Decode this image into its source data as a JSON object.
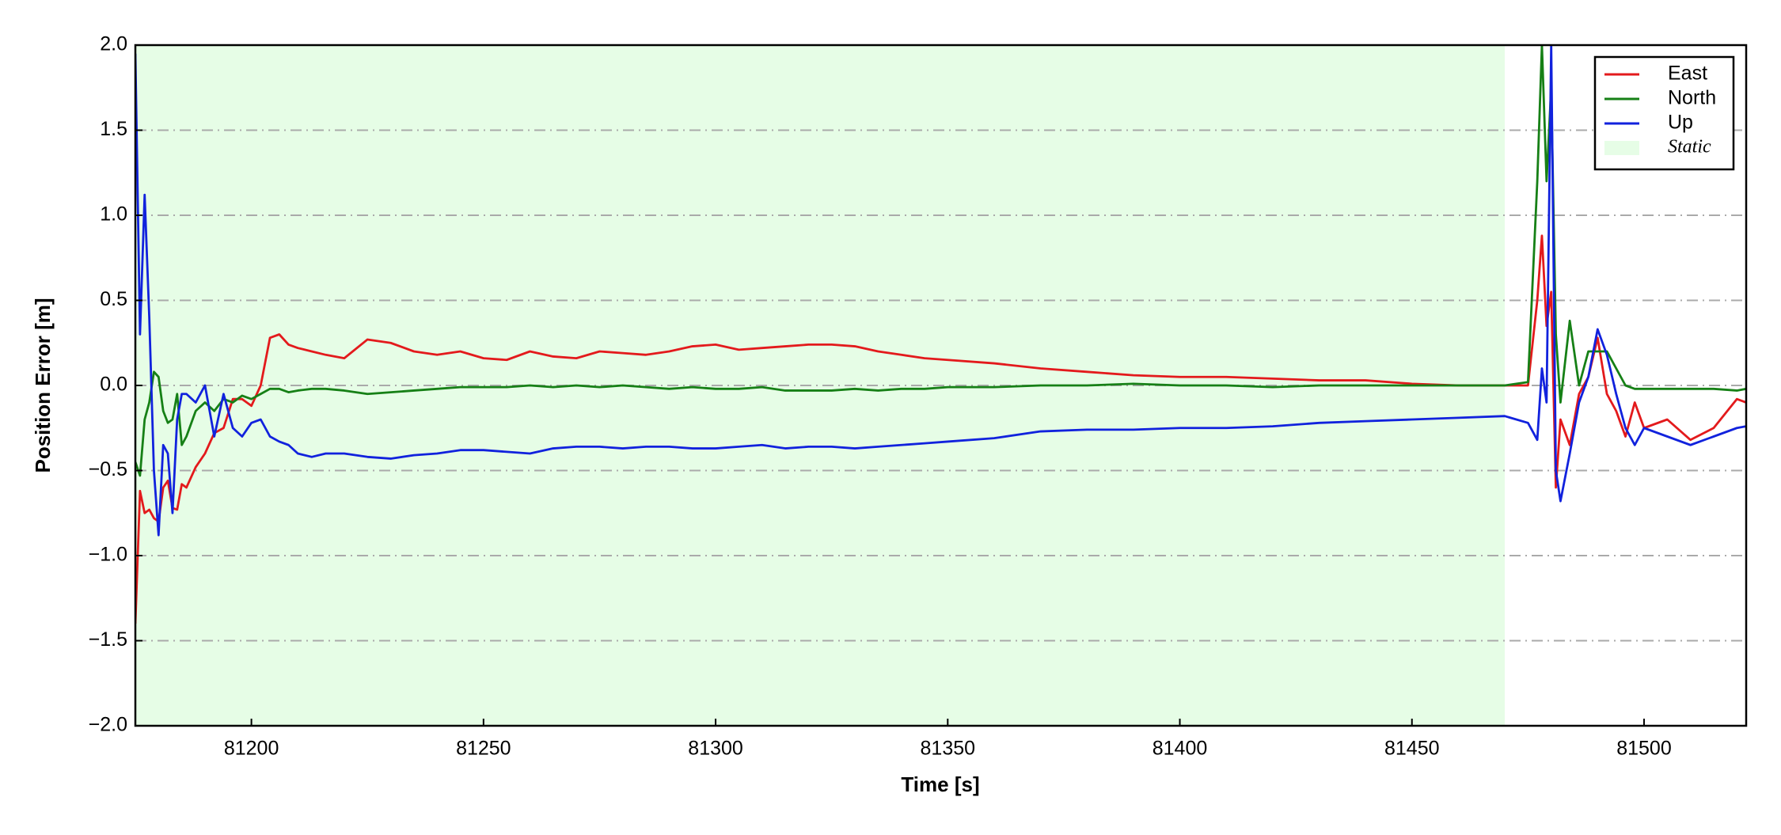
{
  "chart_data": {
    "type": "line",
    "xlabel": "Time [s]",
    "ylabel": "Position Error [m]",
    "xlim": [
      81175,
      81522
    ],
    "ylim": [
      -2,
      2
    ],
    "xticks": [
      81200,
      81250,
      81300,
      81350,
      81400,
      81450,
      81500
    ],
    "yticks": [
      {
        "value": -2,
        "label": "−2.0"
      },
      {
        "value": -1.5,
        "label": "−1.5"
      },
      {
        "value": -1,
        "label": "−1.0"
      },
      {
        "value": -0.5,
        "label": "−0.5"
      },
      {
        "value": 0,
        "label": "0.0"
      },
      {
        "value": 0.5,
        "label": "0.5"
      },
      {
        "value": 1,
        "label": "1.0"
      },
      {
        "value": 1.5,
        "label": "1.5"
      },
      {
        "value": 2,
        "label": "2.0"
      }
    ],
    "grid": "y",
    "legend": "upper right",
    "spans": [
      {
        "name": "Static",
        "color": "#e6fde6",
        "x": [
          81175,
          81470
        ]
      }
    ],
    "x": [
      81175,
      81176,
      81177,
      81178,
      81179,
      81180,
      81181,
      81182,
      81183,
      81184,
      81185,
      81186,
      81188,
      81190,
      81192,
      81194,
      81196,
      81198,
      81200,
      81202,
      81204,
      81206,
      81208,
      81210,
      81213,
      81216,
      81220,
      81225,
      81230,
      81235,
      81240,
      81245,
      81250,
      81255,
      81260,
      81265,
      81270,
      81275,
      81280,
      81285,
      81290,
      81295,
      81300,
      81305,
      81310,
      81315,
      81320,
      81325,
      81330,
      81335,
      81340,
      81345,
      81350,
      81360,
      81370,
      81380,
      81390,
      81400,
      81410,
      81420,
      81430,
      81440,
      81450,
      81460,
      81470,
      81475,
      81477,
      81478,
      81479,
      81480,
      81481,
      81482,
      81484,
      81486,
      81488,
      81490,
      81492,
      81494,
      81496,
      81498,
      81500,
      81505,
      81510,
      81515,
      81520,
      81522
    ],
    "series": [
      {
        "name": "East",
        "color": "#e31a1c",
        "values": [
          -1.4,
          -0.62,
          -0.75,
          -0.73,
          -0.78,
          -0.8,
          -0.6,
          -0.56,
          -0.72,
          -0.73,
          -0.58,
          -0.6,
          -0.48,
          -0.4,
          -0.28,
          -0.25,
          -0.08,
          -0.08,
          -0.12,
          0.0,
          0.28,
          0.3,
          0.24,
          0.22,
          0.2,
          0.18,
          0.16,
          0.27,
          0.25,
          0.2,
          0.18,
          0.2,
          0.16,
          0.15,
          0.2,
          0.17,
          0.16,
          0.2,
          0.19,
          0.18,
          0.2,
          0.23,
          0.24,
          0.21,
          0.22,
          0.23,
          0.24,
          0.24,
          0.23,
          0.2,
          0.18,
          0.16,
          0.15,
          0.13,
          0.1,
          0.08,
          0.06,
          0.05,
          0.05,
          0.04,
          0.03,
          0.03,
          0.01,
          0.0,
          0.0,
          0.0,
          0.5,
          0.88,
          0.35,
          0.55,
          -0.6,
          -0.2,
          -0.35,
          -0.05,
          0.05,
          0.28,
          -0.05,
          -0.15,
          -0.3,
          -0.1,
          -0.25,
          -0.2,
          -0.32,
          -0.25,
          -0.08,
          -0.1
        ]
      },
      {
        "name": "North",
        "color": "#168016",
        "values": [
          -0.45,
          -0.53,
          -0.2,
          -0.1,
          0.08,
          0.05,
          -0.15,
          -0.22,
          -0.2,
          -0.05,
          -0.35,
          -0.3,
          -0.15,
          -0.1,
          -0.15,
          -0.08,
          -0.1,
          -0.06,
          -0.08,
          -0.05,
          -0.02,
          -0.02,
          -0.04,
          -0.03,
          -0.02,
          -0.02,
          -0.03,
          -0.05,
          -0.04,
          -0.03,
          -0.02,
          -0.01,
          -0.01,
          -0.01,
          0.0,
          -0.01,
          0.0,
          -0.01,
          0.0,
          -0.01,
          -0.02,
          -0.01,
          -0.02,
          -0.02,
          -0.01,
          -0.03,
          -0.03,
          -0.03,
          -0.02,
          -0.03,
          -0.02,
          -0.02,
          -0.01,
          -0.01,
          0.0,
          0.0,
          0.01,
          0.0,
          0.0,
          -0.01,
          0.0,
          0.0,
          0.0,
          0.0,
          0.0,
          0.02,
          1.2,
          2.0,
          1.2,
          1.75,
          0.3,
          -0.1,
          0.38,
          0.0,
          0.2,
          0.2,
          0.2,
          0.1,
          0.0,
          -0.02,
          -0.02,
          -0.02,
          -0.02,
          -0.02,
          -0.03,
          -0.02
        ]
      },
      {
        "name": "Up",
        "color": "#1122dd",
        "values": [
          1.95,
          0.3,
          1.12,
          0.4,
          -0.5,
          -0.88,
          -0.35,
          -0.4,
          -0.75,
          -0.2,
          -0.05,
          -0.05,
          -0.1,
          0.0,
          -0.3,
          -0.05,
          -0.25,
          -0.3,
          -0.22,
          -0.2,
          -0.3,
          -0.33,
          -0.35,
          -0.4,
          -0.42,
          -0.4,
          -0.4,
          -0.42,
          -0.43,
          -0.41,
          -0.4,
          -0.38,
          -0.38,
          -0.39,
          -0.4,
          -0.37,
          -0.36,
          -0.36,
          -0.37,
          -0.36,
          -0.36,
          -0.37,
          -0.37,
          -0.36,
          -0.35,
          -0.37,
          -0.36,
          -0.36,
          -0.37,
          -0.36,
          -0.35,
          -0.34,
          -0.33,
          -0.31,
          -0.27,
          -0.26,
          -0.26,
          -0.25,
          -0.25,
          -0.24,
          -0.22,
          -0.21,
          -0.2,
          -0.19,
          -0.18,
          -0.22,
          -0.32,
          0.1,
          -0.1,
          2.0,
          -0.5,
          -0.68,
          -0.4,
          -0.1,
          0.05,
          0.33,
          0.18,
          -0.05,
          -0.25,
          -0.35,
          -0.25,
          -0.3,
          -0.35,
          -0.3,
          -0.25,
          -0.24
        ]
      }
    ]
  }
}
